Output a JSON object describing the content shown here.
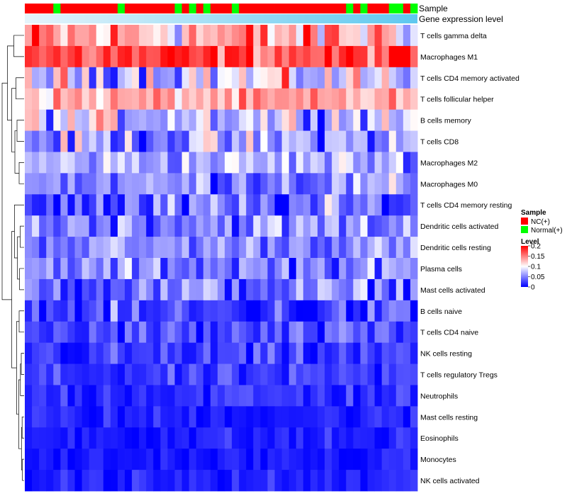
{
  "chart_data": {
    "type": "heatmap",
    "title": "",
    "annotation_labels": [
      "Sample",
      "Gene expression level"
    ],
    "rows": [
      "T cells gamma delta",
      "Macrophages M1",
      "T cells CD4 memory activated",
      "T cells follicular helper",
      "B cells memory",
      "T cells CD8",
      "Macrophages M2",
      "Macrophages M0",
      "T cells CD4 memory resting",
      "Dendritic cells activated",
      "Dendritic cells resting",
      "Plasma cells",
      "Mast cells activated",
      "B cells naive",
      "T cells CD4 naive",
      "NK cells resting",
      "T cells regulatory  Tregs",
      "Neutrophils",
      "Mast cells resting",
      "Eosinophils",
      "Monocytes",
      "NK cells activated"
    ],
    "sample_groups": [
      "NC",
      "NC",
      "NC",
      "NC",
      "Normal",
      "NC",
      "NC",
      "NC",
      "NC",
      "NC",
      "NC",
      "NC",
      "NC",
      "Normal",
      "NC",
      "NC",
      "NC",
      "NC",
      "NC",
      "NC",
      "NC",
      "Normal",
      "NC",
      "Normal",
      "NC",
      "Normal",
      "NC",
      "NC",
      "NC",
      "Normal",
      "NC",
      "NC",
      "NC",
      "NC",
      "NC",
      "NC",
      "NC",
      "NC",
      "NC",
      "NC",
      "NC",
      "NC",
      "NC",
      "NC",
      "NC",
      "Normal",
      "NC",
      "Normal",
      "NC",
      "NC",
      "NC",
      "Normal",
      "Normal",
      "NC",
      "Normal"
    ],
    "sample_legend": {
      "title": "Sample",
      "entries": [
        {
          "label": "NC(+)",
          "color": "#ff0000"
        },
        {
          "label": "Normal(+)",
          "color": "#00ff00"
        }
      ]
    },
    "level_legend": {
      "title": "Level",
      "ticks": [
        "0.2",
        "0.15",
        "0.1",
        "0.05",
        "0"
      ],
      "tick_values": [
        0.2,
        0.15,
        0.1,
        0.05,
        0
      ],
      "range": [
        0,
        0.2
      ],
      "colors": [
        "#0000ff",
        "#ffffff",
        "#ff0000"
      ]
    },
    "row_means": [
      0.13,
      0.17,
      0.09,
      0.13,
      0.085,
      0.06,
      0.07,
      0.055,
      0.035,
      0.055,
      0.055,
      0.05,
      0.045,
      0.02,
      0.025,
      0.02,
      0.02,
      0.02,
      0.012,
      0.012,
      0.008,
      0.012
    ],
    "row_spreads": [
      0.07,
      0.04,
      0.06,
      0.03,
      0.05,
      0.05,
      0.035,
      0.04,
      0.05,
      0.04,
      0.03,
      0.035,
      0.04,
      0.04,
      0.03,
      0.025,
      0.02,
      0.02,
      0.015,
      0.015,
      0.012,
      0.015
    ]
  }
}
